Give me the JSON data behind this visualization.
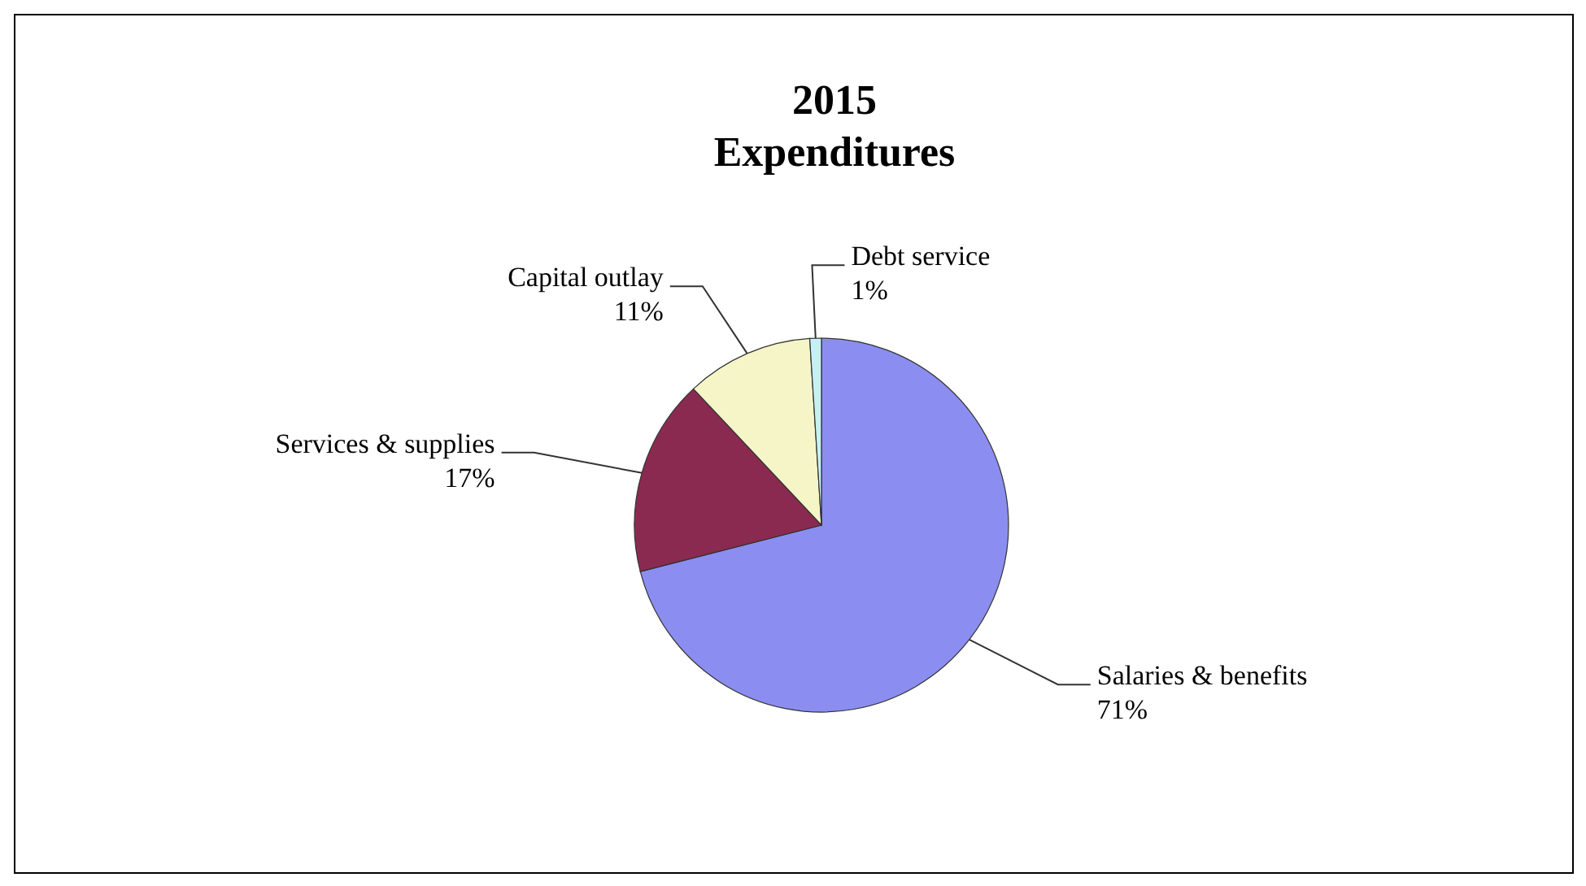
{
  "chart_data": {
    "type": "pie",
    "title": "2015\nExpenditures",
    "categories": [
      "Salaries & benefits",
      "Services & supplies",
      "Capital outlay",
      "Debt service"
    ],
    "values": [
      71,
      17,
      11,
      1
    ],
    "colors": [
      "#8b8ef0",
      "#8b2a50",
      "#f5f5c8",
      "#c6f0f8"
    ],
    "value_labels": [
      "71%",
      "17%",
      "11%",
      "1%"
    ]
  }
}
